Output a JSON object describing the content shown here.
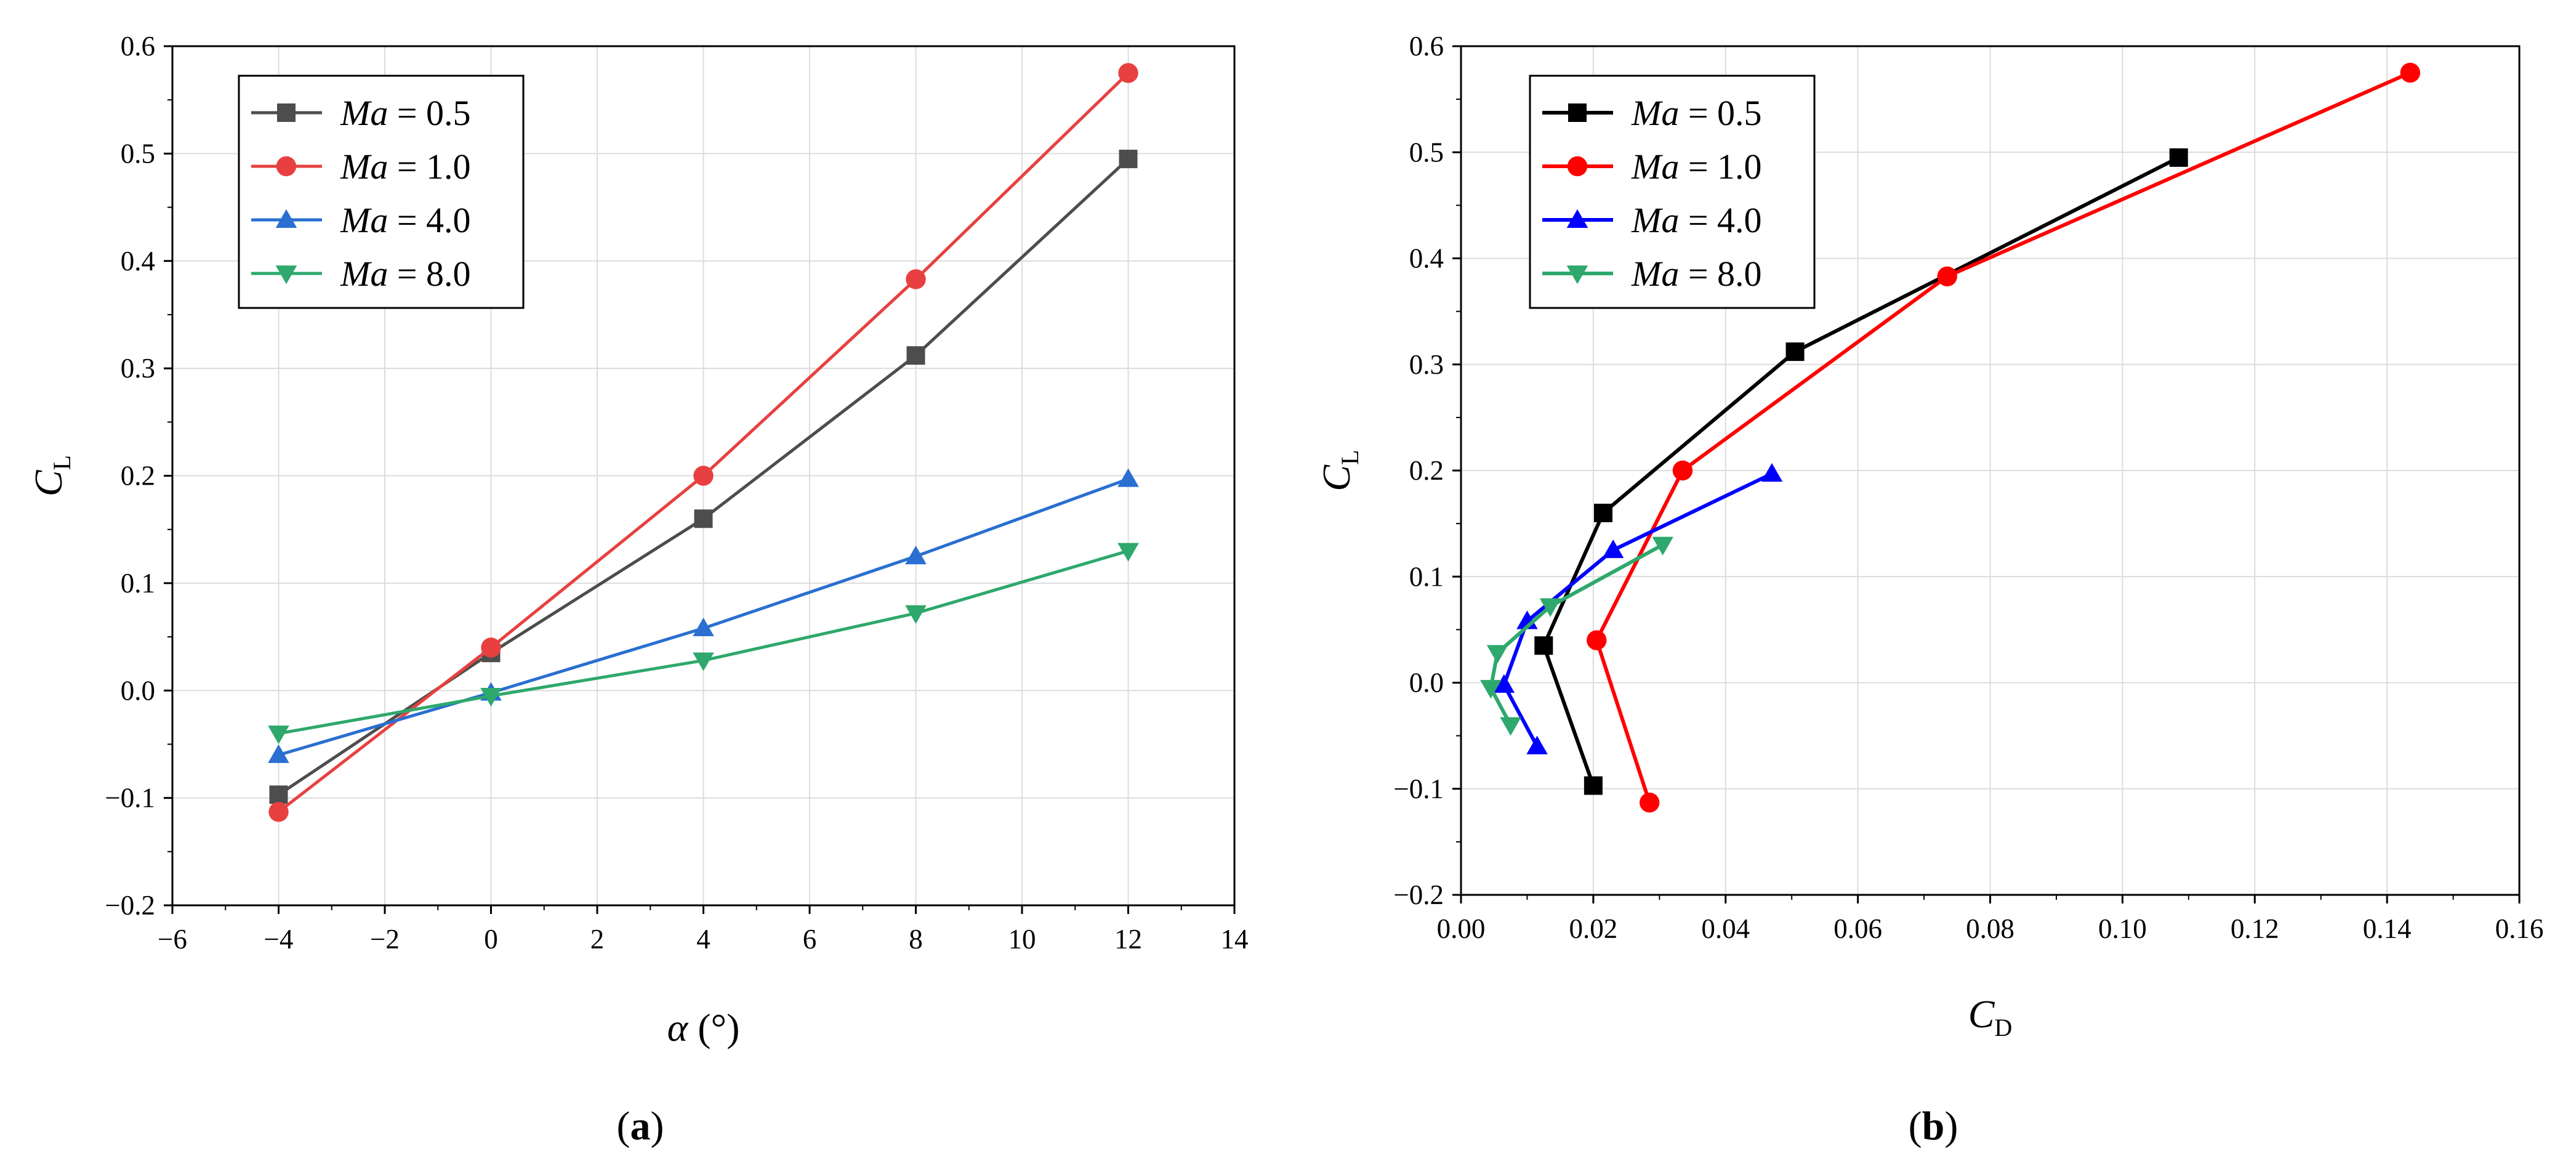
{
  "chart_data": [
    {
      "type": "line",
      "panel_label": "a",
      "xlabel": "α (°)",
      "ylabel": "C",
      "ylabel_sub": "L",
      "xlim": [
        -6,
        14
      ],
      "ylim": [
        -0.2,
        0.6
      ],
      "x_ticks": [
        "−6",
        "−4",
        "−2",
        "0",
        "2",
        "4",
        "6",
        "8",
        "10",
        "12",
        "14"
      ],
      "y_ticks": [
        "−0.2",
        "−0.1",
        "0.0",
        "0.1",
        "0.2",
        "0.3",
        "0.4",
        "0.5",
        "0.6"
      ],
      "grid": true,
      "legend": "top-left",
      "series": [
        {
          "name": "Ma = 0.5",
          "label_var": "Ma",
          "label_val": " = 0.5",
          "color": "#4d4d4d",
          "marker": "square",
          "x": [
            -4,
            0,
            4,
            8,
            12
          ],
          "y": [
            -0.097,
            0.035,
            0.16,
            0.312,
            0.495
          ]
        },
        {
          "name": "Ma = 1.0",
          "label_var": "Ma",
          "label_val": " = 1.0",
          "color": "#e84040",
          "marker": "circle",
          "x": [
            -4,
            0,
            4,
            8,
            12
          ],
          "y": [
            -0.113,
            0.04,
            0.2,
            0.383,
            0.575
          ]
        },
        {
          "name": "Ma = 4.0",
          "label_var": "Ma",
          "label_val": " = 4.0",
          "color": "#2a6fd1",
          "marker": "triangle-up",
          "x": [
            -4,
            0,
            4,
            8,
            12
          ],
          "y": [
            -0.06,
            -0.002,
            0.058,
            0.125,
            0.197
          ]
        },
        {
          "name": "Ma = 8.0",
          "label_var": "Ma",
          "label_val": " = 8.0",
          "color": "#2ea86c",
          "marker": "triangle-down",
          "x": [
            -4,
            0,
            4,
            8,
            12
          ],
          "y": [
            -0.04,
            -0.005,
            0.028,
            0.072,
            0.13
          ]
        }
      ]
    },
    {
      "type": "line",
      "panel_label": "b",
      "xlabel": "C",
      "xlabel_sub": "D",
      "ylabel": "C",
      "ylabel_sub": "L",
      "xlim": [
        0.0,
        0.16
      ],
      "ylim": [
        -0.2,
        0.6
      ],
      "x_ticks": [
        "0.00",
        "0.02",
        "0.04",
        "0.06",
        "0.08",
        "0.10",
        "0.12",
        "0.14",
        "0.16"
      ],
      "y_ticks": [
        "−0.2",
        "−0.1",
        "0.0",
        "0.1",
        "0.2",
        "0.3",
        "0.4",
        "0.5",
        "0.6"
      ],
      "grid": true,
      "legend": "top-left",
      "series": [
        {
          "name": "Ma = 0.5",
          "label_var": "Ma",
          "label_val": " = 0.5",
          "color": "#000000",
          "marker": "square",
          "x": [
            0.02,
            0.0125,
            0.0215,
            0.0505,
            0.1085
          ],
          "y": [
            -0.097,
            0.035,
            0.16,
            0.312,
            0.495
          ]
        },
        {
          "name": "Ma = 1.0",
          "label_var": "Ma",
          "label_val": " = 1.0",
          "color": "#ff0000",
          "marker": "circle",
          "x": [
            0.0285,
            0.0205,
            0.0335,
            0.0735,
            0.1435
          ],
          "y": [
            -0.113,
            0.04,
            0.2,
            0.383,
            0.575
          ]
        },
        {
          "name": "Ma = 4.0",
          "label_var": "Ma",
          "label_val": " = 4.0",
          "color": "#0000ff",
          "marker": "triangle-up",
          "x": [
            0.0115,
            0.0065,
            0.01,
            0.023,
            0.047
          ],
          "y": [
            -0.06,
            -0.002,
            0.058,
            0.125,
            0.197
          ]
        },
        {
          "name": "Ma = 8.0",
          "label_var": "Ma",
          "label_val": " = 8.0",
          "color": "#2ea86c",
          "marker": "triangle-down",
          "x": [
            0.0075,
            0.0045,
            0.0055,
            0.0135,
            0.0305
          ],
          "y": [
            -0.04,
            -0.005,
            0.028,
            0.072,
            0.13
          ]
        }
      ]
    }
  ]
}
